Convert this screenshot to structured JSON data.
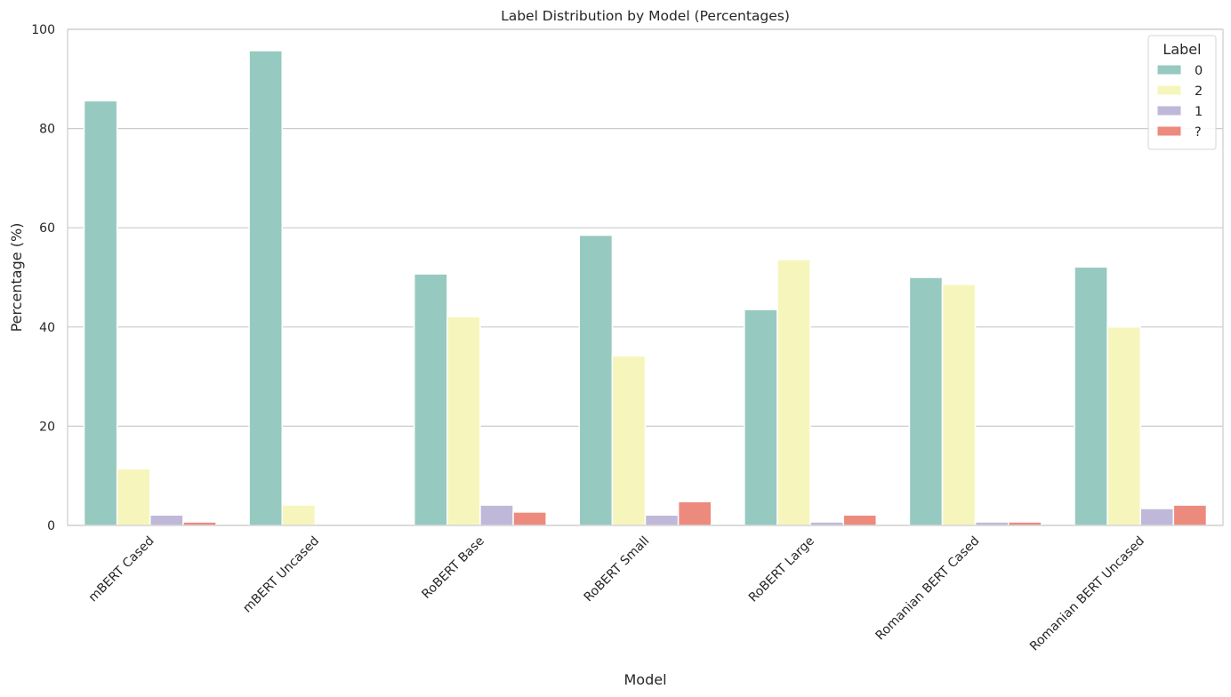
{
  "chart_data": {
    "type": "bar",
    "title": "Label Distribution by Model (Percentages)",
    "xlabel": "Model",
    "ylabel": "Percentage (%)",
    "ylim": [
      0,
      100
    ],
    "yticks": [
      0,
      20,
      40,
      60,
      80,
      100
    ],
    "grid": "horizontal",
    "categories": [
      "mBERT Cased",
      "mBERT Uncased",
      "RoBERT Base",
      "RoBERT Small",
      "RoBERT Large",
      "Romanian BERT Cased",
      "Romanian BERT Uncased"
    ],
    "legend": {
      "title": "Label",
      "placement": "top-right"
    },
    "series": [
      {
        "name": "0",
        "color": "#96c9bf",
        "values": [
          85.6,
          95.7,
          50.7,
          58.5,
          43.5,
          50.0,
          52.1
        ]
      },
      {
        "name": "2",
        "color": "#f6f6bc",
        "values": [
          11.4,
          4.1,
          42.1,
          34.2,
          53.6,
          48.6,
          40.0
        ]
      },
      {
        "name": "1",
        "color": "#bfb8d8",
        "values": [
          2.1,
          0.0,
          4.1,
          2.1,
          0.7,
          0.7,
          3.4
        ]
      },
      {
        "name": "?",
        "color": "#ec8a7e",
        "values": [
          0.7,
          0.0,
          2.7,
          4.8,
          2.1,
          0.7,
          4.1
        ]
      }
    ]
  }
}
